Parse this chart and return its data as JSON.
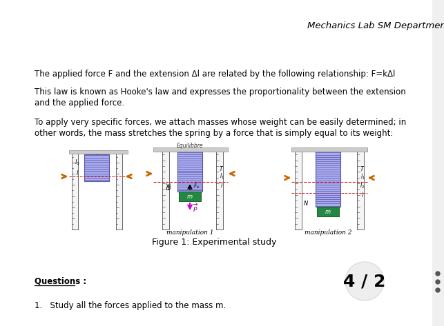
{
  "background_color": "#ffffff",
  "header_text": "Mechanics Lab SM Department",
  "header_fontsize": 9.5,
  "para1": "The applied force F and the extension Δl are related by the following relationship: F=kΔl",
  "para2_line1": "This law is known as Hooke's law and expresses the proportionality between the extension",
  "para2_line2": "and the applied force.",
  "para3_line1": "To apply very specific forces, we attach masses whose weight can be easily determined; in",
  "para3_line2": "other words, the mass stretches the spring by a force that is simply equal to its weight:",
  "figure_caption": "Figure 1: Experimental study",
  "questions_label": "Questions :",
  "question1": "1.   Study all the forces applied to the mass m.",
  "page_indicator": "4 / 2",
  "text_color": "#000000",
  "text_fontsize": 8.5,
  "spring_color_edge": "#5555aa",
  "spring_color_face": "#aaaaee",
  "mass_color": "#228844",
  "orange_arrow_color": "#cc6600",
  "red_dash_color": "#cc2222",
  "right_border_color": "#f0f0f0",
  "circle_color": "#eeeeee"
}
